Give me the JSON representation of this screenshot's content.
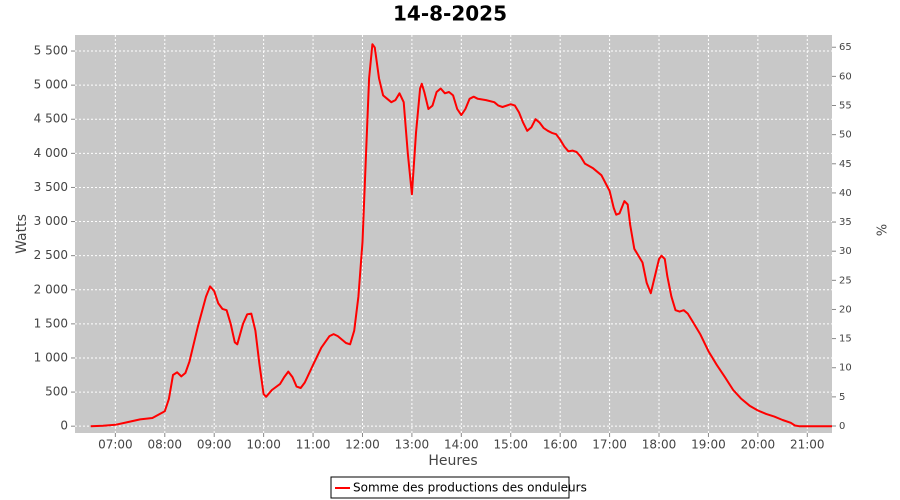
{
  "chart_data": {
    "type": "line",
    "title": "14-8-2025",
    "x_label": "Heures",
    "y_label": "Watts",
    "y2_label": "%",
    "x": [
      "06:30",
      "06:45",
      "07:00",
      "07:15",
      "07:30",
      "07:45",
      "08:00",
      "08:05",
      "08:10",
      "08:15",
      "08:20",
      "08:25",
      "08:30",
      "08:40",
      "08:50",
      "08:55",
      "09:00",
      "09:05",
      "09:10",
      "09:15",
      "09:20",
      "09:25",
      "09:28",
      "09:35",
      "09:40",
      "09:45",
      "09:50",
      "09:55",
      "10:00",
      "10:03",
      "10:10",
      "10:20",
      "10:25",
      "10:30",
      "10:35",
      "10:40",
      "10:45",
      "10:50",
      "11:00",
      "11:10",
      "11:20",
      "11:25",
      "11:30",
      "11:40",
      "11:45",
      "11:50",
      "11:55",
      "12:00",
      "12:05",
      "12:08",
      "12:12",
      "12:15",
      "12:20",
      "12:25",
      "12:30",
      "12:35",
      "12:40",
      "12:45",
      "12:50",
      "12:55",
      "13:00",
      "13:05",
      "13:10",
      "13:12",
      "13:15",
      "13:20",
      "13:25",
      "13:30",
      "13:35",
      "13:40",
      "13:45",
      "13:50",
      "13:55",
      "14:00",
      "14:05",
      "14:10",
      "14:15",
      "14:20",
      "14:30",
      "14:40",
      "14:45",
      "14:50",
      "15:00",
      "15:05",
      "15:10",
      "15:15",
      "15:20",
      "15:25",
      "15:30",
      "15:35",
      "15:40",
      "15:45",
      "15:50",
      "15:55",
      "16:00",
      "16:05",
      "16:10",
      "16:15",
      "16:20",
      "16:25",
      "16:30",
      "16:40",
      "16:50",
      "17:00",
      "17:05",
      "17:08",
      "17:12",
      "17:18",
      "17:22",
      "17:25",
      "17:30",
      "17:40",
      "17:45",
      "17:50",
      "17:55",
      "18:00",
      "18:03",
      "18:07",
      "18:10",
      "18:15",
      "18:20",
      "18:25",
      "18:30",
      "18:35",
      "18:40",
      "18:50",
      "19:00",
      "19:10",
      "19:20",
      "19:30",
      "19:40",
      "19:50",
      "20:00",
      "20:10",
      "20:20",
      "20:30",
      "20:40",
      "20:45",
      "20:50",
      "21:30"
    ],
    "series": [
      {
        "name": "Somme des productions des onduleurs",
        "color": "#ff0000",
        "values": [
          0,
          5,
          20,
          60,
          100,
          120,
          220,
          400,
          750,
          790,
          730,
          780,
          950,
          1450,
          1900,
          2050,
          1980,
          1800,
          1720,
          1700,
          1500,
          1230,
          1200,
          1500,
          1640,
          1650,
          1400,
          900,
          470,
          430,
          530,
          620,
          720,
          800,
          720,
          580,
          560,
          640,
          900,
          1150,
          1320,
          1350,
          1320,
          1220,
          1200,
          1400,
          1900,
          2700,
          4200,
          5100,
          5600,
          5550,
          5100,
          4850,
          4800,
          4750,
          4780,
          4880,
          4750,
          4000,
          3400,
          4300,
          4950,
          5020,
          4900,
          4650,
          4700,
          4900,
          4950,
          4880,
          4900,
          4850,
          4650,
          4560,
          4650,
          4800,
          4830,
          4800,
          4780,
          4750,
          4700,
          4680,
          4720,
          4700,
          4600,
          4450,
          4330,
          4380,
          4500,
          4450,
          4370,
          4330,
          4300,
          4280,
          4200,
          4100,
          4030,
          4040,
          4020,
          3950,
          3850,
          3780,
          3680,
          3450,
          3200,
          3100,
          3120,
          3300,
          3250,
          2950,
          2600,
          2400,
          2100,
          1950,
          2200,
          2450,
          2500,
          2450,
          2200,
          1900,
          1700,
          1680,
          1700,
          1650,
          1550,
          1350,
          1100,
          900,
          720,
          530,
          400,
          300,
          230,
          180,
          140,
          90,
          50,
          10,
          0,
          0
        ]
      }
    ],
    "xlim": [
      "06:11",
      "21:30"
    ],
    "xticks": [
      "07:00",
      "08:00",
      "09:00",
      "10:00",
      "11:00",
      "12:00",
      "13:00",
      "14:00",
      "15:00",
      "16:00",
      "17:00",
      "18:00",
      "19:00",
      "20:00",
      "21:00"
    ],
    "ylim": [
      -100,
      5735
    ],
    "yticks": [
      0,
      500,
      {
        "value": 1000,
        "label": "1 000"
      },
      {
        "value": 1500,
        "label": "1 500"
      },
      {
        "value": 2000,
        "label": "2 000"
      },
      {
        "value": 2500,
        "label": "2 500"
      },
      {
        "value": 3000,
        "label": "3 000"
      },
      {
        "value": 3500,
        "label": "3 500"
      },
      {
        "value": 4000,
        "label": "4 000"
      },
      {
        "value": 4500,
        "label": "4 500"
      },
      {
        "value": 5000,
        "label": "5 000"
      },
      {
        "value": 5500,
        "label": "5 500"
      }
    ],
    "y2lim": [
      -1.2,
      67.1
    ],
    "y2ticks": [
      0,
      5,
      10,
      15,
      20,
      25,
      30,
      35,
      40,
      45,
      50,
      55,
      60,
      65
    ],
    "grid": true,
    "legend": "bottom"
  }
}
